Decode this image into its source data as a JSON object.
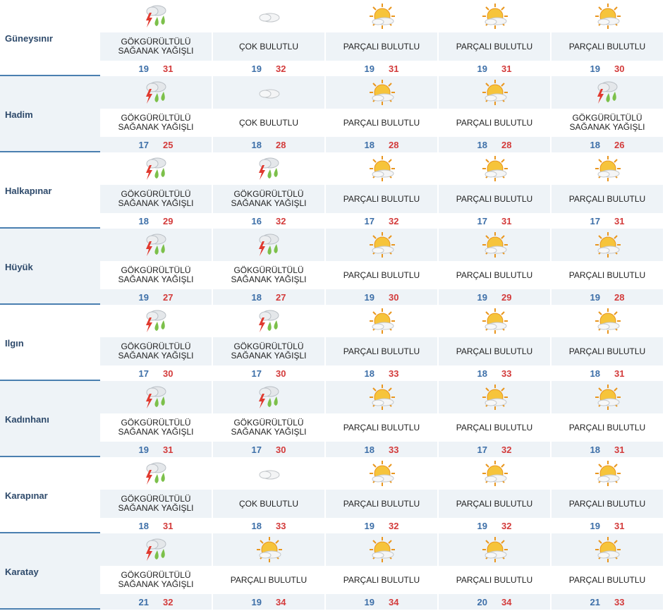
{
  "rows": [
    {
      "city": "Güneysınır",
      "days": [
        {
          "icon": "thunder-rain-icon",
          "desc1": "GÖKGÜRÜLTÜLÜ",
          "desc2": "SAĞANAK YAĞIŞLI",
          "min": "19",
          "max": "31"
        },
        {
          "icon": "cloud-icon",
          "desc1": "ÇOK BULUTLU",
          "desc2": "",
          "min": "19",
          "max": "32"
        },
        {
          "icon": "sun-cloud-icon",
          "desc1": "PARÇALI BULUTLU",
          "desc2": "",
          "min": "19",
          "max": "31"
        },
        {
          "icon": "sun-cloud-icon",
          "desc1": "PARÇALI BULUTLU",
          "desc2": "",
          "min": "19",
          "max": "31"
        },
        {
          "icon": "sun-cloud-icon",
          "desc1": "PARÇALI BULUTLU",
          "desc2": "",
          "min": "19",
          "max": "30"
        }
      ]
    },
    {
      "city": "Hadim",
      "days": [
        {
          "icon": "thunder-rain-icon",
          "desc1": "GÖKGÜRÜLTÜLÜ",
          "desc2": "SAĞANAK YAĞIŞLI",
          "min": "17",
          "max": "25"
        },
        {
          "icon": "cloud-icon",
          "desc1": "ÇOK BULUTLU",
          "desc2": "",
          "min": "18",
          "max": "28"
        },
        {
          "icon": "sun-cloud-icon",
          "desc1": "PARÇALI BULUTLU",
          "desc2": "",
          "min": "18",
          "max": "28"
        },
        {
          "icon": "sun-cloud-icon",
          "desc1": "PARÇALI BULUTLU",
          "desc2": "",
          "min": "18",
          "max": "28"
        },
        {
          "icon": "thunder-rain-icon",
          "desc1": "GÖKGÜRÜLTÜLÜ",
          "desc2": "SAĞANAK YAĞIŞLI",
          "min": "18",
          "max": "26"
        }
      ]
    },
    {
      "city": "Halkapınar",
      "days": [
        {
          "icon": "thunder-rain-icon",
          "desc1": "GÖKGÜRÜLTÜLÜ",
          "desc2": "SAĞANAK YAĞIŞLI",
          "min": "18",
          "max": "29"
        },
        {
          "icon": "thunder-rain-icon",
          "desc1": "GÖKGÜRÜLTÜLÜ",
          "desc2": "SAĞANAK YAĞIŞLI",
          "min": "16",
          "max": "32"
        },
        {
          "icon": "sun-cloud-icon",
          "desc1": "PARÇALI BULUTLU",
          "desc2": "",
          "min": "17",
          "max": "32"
        },
        {
          "icon": "sun-cloud-icon",
          "desc1": "PARÇALI BULUTLU",
          "desc2": "",
          "min": "17",
          "max": "31"
        },
        {
          "icon": "sun-cloud-icon",
          "desc1": "PARÇALI BULUTLU",
          "desc2": "",
          "min": "17",
          "max": "31"
        }
      ]
    },
    {
      "city": "Hüyük",
      "days": [
        {
          "icon": "thunder-rain-icon",
          "desc1": "GÖKGÜRÜLTÜLÜ",
          "desc2": "SAĞANAK YAĞIŞLI",
          "min": "19",
          "max": "27"
        },
        {
          "icon": "thunder-rain-icon",
          "desc1": "GÖKGÜRÜLTÜLÜ",
          "desc2": "SAĞANAK YAĞIŞLI",
          "min": "18",
          "max": "27"
        },
        {
          "icon": "sun-cloud-icon",
          "desc1": "PARÇALI BULUTLU",
          "desc2": "",
          "min": "19",
          "max": "30"
        },
        {
          "icon": "sun-cloud-icon",
          "desc1": "PARÇALI BULUTLU",
          "desc2": "",
          "min": "19",
          "max": "29"
        },
        {
          "icon": "sun-cloud-icon",
          "desc1": "PARÇALI BULUTLU",
          "desc2": "",
          "min": "19",
          "max": "28"
        }
      ]
    },
    {
      "city": "Ilgın",
      "days": [
        {
          "icon": "thunder-rain-icon",
          "desc1": "GÖKGÜRÜLTÜLÜ",
          "desc2": "SAĞANAK YAĞIŞLI",
          "min": "17",
          "max": "30"
        },
        {
          "icon": "thunder-rain-icon",
          "desc1": "GÖKGÜRÜLTÜLÜ",
          "desc2": "SAĞANAK YAĞIŞLI",
          "min": "17",
          "max": "30"
        },
        {
          "icon": "sun-cloud-icon",
          "desc1": "PARÇALI BULUTLU",
          "desc2": "",
          "min": "18",
          "max": "33"
        },
        {
          "icon": "sun-cloud-icon",
          "desc1": "PARÇALI BULUTLU",
          "desc2": "",
          "min": "18",
          "max": "33"
        },
        {
          "icon": "sun-cloud-icon",
          "desc1": "PARÇALI BULUTLU",
          "desc2": "",
          "min": "18",
          "max": "31"
        }
      ]
    },
    {
      "city": "Kadınhanı",
      "days": [
        {
          "icon": "thunder-rain-icon",
          "desc1": "GÖKGÜRÜLTÜLÜ",
          "desc2": "SAĞANAK YAĞIŞLI",
          "min": "19",
          "max": "31"
        },
        {
          "icon": "thunder-rain-icon",
          "desc1": "GÖKGÜRÜLTÜLÜ",
          "desc2": "SAĞANAK YAĞIŞLI",
          "min": "17",
          "max": "30"
        },
        {
          "icon": "sun-cloud-icon",
          "desc1": "PARÇALI BULUTLU",
          "desc2": "",
          "min": "18",
          "max": "33"
        },
        {
          "icon": "sun-cloud-icon",
          "desc1": "PARÇALI BULUTLU",
          "desc2": "",
          "min": "17",
          "max": "32"
        },
        {
          "icon": "sun-cloud-icon",
          "desc1": "PARÇALI BULUTLU",
          "desc2": "",
          "min": "18",
          "max": "31"
        }
      ]
    },
    {
      "city": "Karapınar",
      "days": [
        {
          "icon": "thunder-rain-icon",
          "desc1": "GÖKGÜRÜLTÜLÜ",
          "desc2": "SAĞANAK YAĞIŞLI",
          "min": "18",
          "max": "31"
        },
        {
          "icon": "cloud-icon",
          "desc1": "ÇOK BULUTLU",
          "desc2": "",
          "min": "18",
          "max": "33"
        },
        {
          "icon": "sun-cloud-icon",
          "desc1": "PARÇALI BULUTLU",
          "desc2": "",
          "min": "19",
          "max": "32"
        },
        {
          "icon": "sun-cloud-icon",
          "desc1": "PARÇALI BULUTLU",
          "desc2": "",
          "min": "19",
          "max": "32"
        },
        {
          "icon": "sun-cloud-icon",
          "desc1": "PARÇALI BULUTLU",
          "desc2": "",
          "min": "19",
          "max": "31"
        }
      ]
    },
    {
      "city": "Karatay",
      "days": [
        {
          "icon": "thunder-rain-icon",
          "desc1": "GÖKGÜRÜLTÜLÜ",
          "desc2": "SAĞANAK YAĞIŞLI",
          "min": "21",
          "max": "32"
        },
        {
          "icon": "sun-cloud-icon",
          "desc1": "PARÇALI BULUTLU",
          "desc2": "",
          "min": "19",
          "max": "34"
        },
        {
          "icon": "sun-cloud-icon",
          "desc1": "PARÇALI BULUTLU",
          "desc2": "",
          "min": "19",
          "max": "34"
        },
        {
          "icon": "sun-cloud-icon",
          "desc1": "PARÇALI BULUTLU",
          "desc2": "",
          "min": "20",
          "max": "34"
        },
        {
          "icon": "sun-cloud-icon",
          "desc1": "PARÇALI BULUTLU",
          "desc2": "",
          "min": "21",
          "max": "33"
        }
      ]
    }
  ],
  "colors": {
    "min": "#3d6fa8",
    "max": "#d33b3b",
    "city": "#2e4a6b",
    "shade": "#eef3f7",
    "divider": "#4a7fb0"
  }
}
